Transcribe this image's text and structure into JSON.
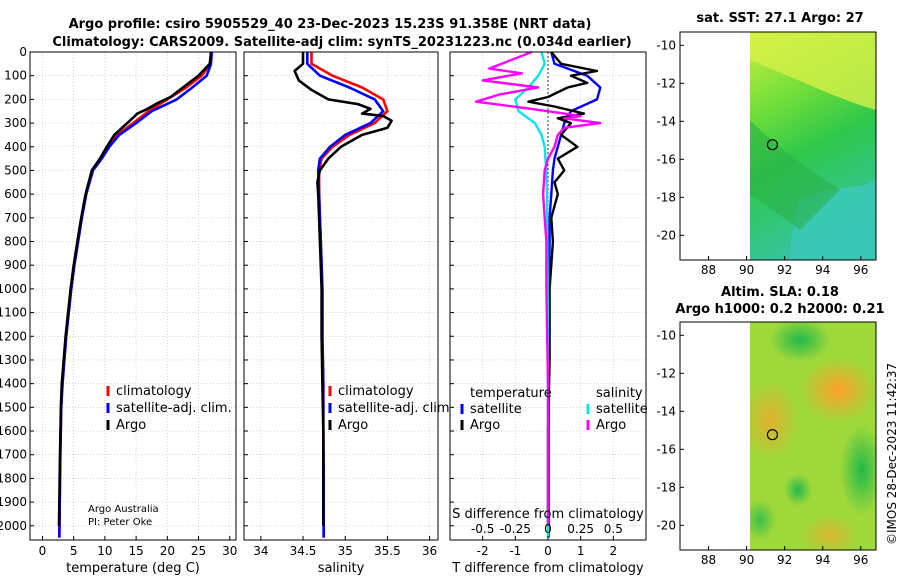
{
  "title": {
    "line1": "Argo profile: csiro 5905529_40 23-Dec-2023 15.23S 91.358E (NRT data)",
    "line2": "Climatology: CARS2009. Satellite-adj clim: synTS_20231223.nc (0.034d earlier)"
  },
  "credits": {
    "institution": "Argo Australia",
    "pi": "PI: Peter Oke",
    "imos": "©IMOS 28-Dec-2023 11:42:37"
  },
  "colors": {
    "climatology": "#ff0000",
    "satellite_clim": "#0000ff",
    "argo": "#000000",
    "sat_T": "#0000ff",
    "sat_S": "#00e5ee",
    "argo_S": "#ff00ff"
  },
  "chart_data": [
    {
      "type": "line",
      "id": "temperature",
      "xlabel": "temperature (deg C)",
      "xlim": [
        -2,
        31
      ],
      "xticks": [
        0,
        5,
        10,
        15,
        20,
        25,
        30
      ],
      "ylim": [
        2060,
        0
      ],
      "yticks": [
        0,
        100,
        200,
        300,
        400,
        500,
        600,
        700,
        800,
        900,
        1000,
        1100,
        1200,
        1300,
        1400,
        1500,
        1600,
        1700,
        1800,
        1900,
        2000
      ],
      "legend": [
        "climatology",
        "satellite-adj. clim.",
        "Argo"
      ],
      "series": [
        {
          "name": "climatology",
          "color": "#ff0000",
          "x": [
            27.0,
            26.9,
            25.5,
            23.0,
            20.0,
            17.0,
            14.5,
            12.0,
            10.5,
            9.3,
            8.0,
            7.0,
            6.3,
            5.7,
            5.1,
            4.6,
            4.2,
            3.8,
            3.5,
            3.2,
            3.0,
            2.85,
            2.7
          ],
          "y": [
            0,
            50,
            100,
            150,
            200,
            250,
            300,
            350,
            400,
            450,
            500,
            600,
            700,
            800,
            900,
            1000,
            1100,
            1200,
            1300,
            1400,
            1500,
            1700,
            2050
          ]
        },
        {
          "name": "satellite-adj. clim.",
          "color": "#0000ff",
          "x": [
            27.1,
            27.0,
            26.3,
            24.0,
            21.5,
            17.5,
            15.0,
            12.3,
            10.7,
            9.5,
            8.1,
            7.0,
            6.3,
            5.7,
            5.1,
            4.6,
            4.2,
            3.8,
            3.5,
            3.2,
            3.0,
            2.85,
            2.7
          ],
          "y": [
            0,
            50,
            100,
            150,
            200,
            250,
            300,
            350,
            400,
            450,
            500,
            600,
            700,
            800,
            900,
            1000,
            1100,
            1200,
            1300,
            1400,
            1500,
            1700,
            2050
          ]
        },
        {
          "name": "Argo",
          "color": "#000000",
          "x": [
            27.0,
            26.8,
            25.0,
            22.5,
            20.5,
            18.5,
            16.8,
            15.2,
            14.0,
            11.5,
            10.3,
            9.2,
            7.9,
            6.9,
            6.2,
            5.6,
            5.0,
            4.5,
            4.1,
            3.7,
            3.4,
            3.1,
            2.95,
            2.8,
            2.65
          ],
          "y": [
            0,
            50,
            100,
            150,
            190,
            215,
            240,
            260,
            290,
            350,
            400,
            450,
            500,
            600,
            700,
            800,
            900,
            1000,
            1100,
            1200,
            1300,
            1400,
            1500,
            1700,
            2000
          ]
        }
      ]
    },
    {
      "type": "line",
      "id": "salinity",
      "xlabel": "salinity",
      "xlim": [
        33.8,
        36.1
      ],
      "xticks": [
        34,
        34.5,
        35,
        35.5,
        36
      ],
      "ylim": [
        2060,
        0
      ],
      "legend": [
        "climatology",
        "satellite-adj. clim.",
        "Argo"
      ],
      "series": [
        {
          "name": "climatology",
          "color": "#ff0000",
          "x": [
            34.6,
            34.6,
            34.85,
            35.2,
            35.45,
            35.5,
            35.35,
            35.05,
            34.85,
            34.72,
            34.69,
            34.69,
            34.7,
            34.71,
            34.72,
            34.73,
            34.73,
            34.74,
            34.74,
            34.74,
            34.745,
            34.745
          ],
          "y": [
            0,
            50,
            100,
            150,
            200,
            250,
            300,
            350,
            400,
            450,
            500,
            600,
            700,
            800,
            900,
            1000,
            1200,
            1400,
            1500,
            1600,
            1800,
            2050
          ]
        },
        {
          "name": "satellite-adj. clim.",
          "color": "#0000ff",
          "x": [
            34.55,
            34.55,
            34.7,
            35.05,
            35.35,
            35.45,
            35.3,
            35.0,
            34.82,
            34.7,
            34.68,
            34.69,
            34.7,
            34.71,
            34.72,
            34.73,
            34.73,
            34.74,
            34.74,
            34.74,
            34.745,
            34.745
          ],
          "y": [
            0,
            50,
            100,
            150,
            200,
            250,
            300,
            350,
            400,
            450,
            500,
            600,
            700,
            800,
            900,
            1000,
            1200,
            1400,
            1500,
            1600,
            1800,
            2050
          ]
        },
        {
          "name": "Argo",
          "color": "#000000",
          "x": [
            34.5,
            34.5,
            34.4,
            34.45,
            34.6,
            34.8,
            35.15,
            35.3,
            35.2,
            35.45,
            35.55,
            35.5,
            35.2,
            34.95,
            34.8,
            34.7,
            34.67,
            34.68,
            34.69,
            34.7,
            34.71,
            34.72,
            34.72,
            34.73,
            34.74,
            34.74
          ],
          "y": [
            0,
            50,
            80,
            120,
            160,
            200,
            220,
            240,
            260,
            270,
            290,
            320,
            350,
            400,
            450,
            500,
            550,
            600,
            700,
            800,
            900,
            1000,
            1200,
            1400,
            1600,
            2000
          ]
        }
      ]
    },
    {
      "type": "line",
      "id": "differences",
      "xlabel": "T difference from climatology",
      "xlabel_top": "S difference from climatology",
      "xlim": [
        -3,
        3
      ],
      "xticks": [
        -2,
        -1,
        0,
        1,
        2
      ],
      "xticks_S": [
        "-0.5",
        "-0.25",
        "0",
        "0.25",
        "0.5"
      ],
      "ylim": [
        2060,
        0
      ],
      "legend_T_title": "temperature",
      "legend_S_title": "salinity",
      "legend": [
        "satellite",
        "Argo",
        "satellite",
        "Argo"
      ],
      "series": [
        {
          "name": "T satellite",
          "color": "#0000ff",
          "x": [
            0.1,
            0.2,
            1.2,
            1.6,
            1.5,
            0.7,
            0.5,
            0.4,
            0.3,
            0.2,
            0.15,
            0.1,
            0.05,
            0.05,
            0.03,
            0.02,
            0.02
          ],
          "y": [
            0,
            50,
            100,
            150,
            200,
            250,
            300,
            350,
            400,
            450,
            500,
            600,
            700,
            800,
            1000,
            1400,
            2050
          ]
        },
        {
          "name": "T Argo",
          "color": "#000000",
          "x": [
            0.1,
            0.4,
            1.5,
            0.7,
            1.2,
            0.6,
            0.0,
            -0.6,
            0.2,
            1.1,
            0.3,
            0.7,
            0.4,
            0.9,
            0.3,
            0.5,
            0.2,
            0.3,
            0.1,
            0.15,
            0.05,
            0.05,
            0.0,
            0.0
          ],
          "y": [
            0,
            50,
            80,
            100,
            130,
            150,
            190,
            210,
            230,
            260,
            280,
            300,
            350,
            400,
            450,
            500,
            550,
            600,
            700,
            800,
            1000,
            1300,
            1600,
            2000
          ]
        },
        {
          "name": "S satellite",
          "color": "#00e5ee",
          "x": [
            -0.2,
            -0.1,
            -0.3,
            -0.6,
            -1.0,
            -0.9,
            -0.4,
            -0.2,
            -0.1,
            -0.08,
            -0.05,
            -0.03,
            -0.02,
            0.0,
            0.0
          ],
          "y": [
            0,
            50,
            100,
            150,
            200,
            250,
            300,
            350,
            400,
            450,
            500,
            600,
            800,
            1200,
            2050
          ]
        },
        {
          "name": "S Argo",
          "color": "#ff00ff",
          "x": [
            -0.5,
            -1.8,
            -0.8,
            -2.0,
            -0.3,
            -1.5,
            -2.2,
            -0.5,
            0.5,
            1.0,
            0.5,
            1.6,
            0.5,
            0.3,
            0.2,
            0.0,
            -0.1,
            -0.15,
            -0.1,
            -0.05,
            -0.05,
            0.0,
            0.0
          ],
          "y": [
            0,
            70,
            90,
            120,
            150,
            180,
            210,
            240,
            260,
            270,
            280,
            300,
            320,
            350,
            400,
            450,
            500,
            600,
            700,
            800,
            1000,
            1400,
            2000
          ]
        }
      ]
    },
    {
      "type": "heatmap",
      "id": "sst_map",
      "title": "sat. SST: 27.1 Argo: 27",
      "xlim": [
        86.5,
        96.8
      ],
      "ylim": [
        -21.3,
        -9.3
      ],
      "xticks": [
        88,
        90,
        92,
        94,
        96
      ],
      "yticks": [
        -10,
        -12,
        -14,
        -16,
        -18,
        -20
      ],
      "marker": {
        "lon": 91.358,
        "lat": -15.23
      }
    },
    {
      "type": "heatmap",
      "id": "sla_map",
      "title_line1": "Altim. SLA: 0.18",
      "title_line2": "Argo h1000: 0.2 h2000: 0.21",
      "xlim": [
        86.5,
        96.8
      ],
      "ylim": [
        -21.3,
        -9.3
      ],
      "xticks": [
        88,
        90,
        92,
        94,
        96
      ],
      "yticks": [
        -10,
        -12,
        -14,
        -16,
        -18,
        -20
      ],
      "marker": {
        "lon": 91.358,
        "lat": -15.23
      }
    }
  ]
}
